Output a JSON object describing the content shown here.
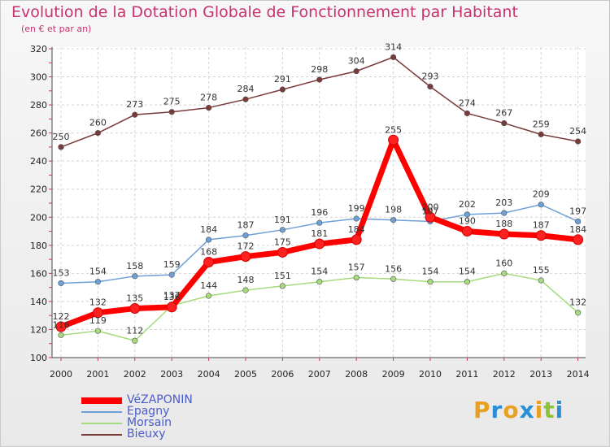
{
  "title": "Evolution de la Dotation Globale de Fonctionnement par Habitant",
  "subtitle": "(en € et par an)",
  "logo": {
    "text": "Proxiti",
    "letters": [
      "P",
      "r",
      "o",
      "x",
      "i",
      "t",
      "i"
    ],
    "colors": [
      "#e8a020",
      "#2a8fd6",
      "#e8a020",
      "#2a8fd6",
      "#e8a020",
      "#8fc23b",
      "#2a8fd6"
    ]
  },
  "chart_data": {
    "type": "line",
    "x": [
      2000,
      2001,
      2002,
      2003,
      2004,
      2005,
      2006,
      2007,
      2008,
      2009,
      2010,
      2011,
      2012,
      2013,
      2014
    ],
    "ylim": [
      100,
      320
    ],
    "yticks": [
      100,
      120,
      140,
      160,
      180,
      200,
      220,
      240,
      260,
      280,
      300,
      320
    ],
    "grid": true,
    "legend": "bottom-left",
    "series": [
      {
        "name": "VéZAPONIN",
        "color": "#ff0000",
        "values": [
          122,
          132,
          135,
          136,
          168,
          172,
          175,
          181,
          184,
          255,
          200,
          190,
          188,
          187,
          184
        ],
        "labels": [
          "122",
          "132",
          "135",
          "136",
          "168",
          "172",
          "175",
          "181",
          "184",
          "255",
          "200",
          "190",
          "188",
          "187",
          "184"
        ]
      },
      {
        "name": "Epagny",
        "color": "#6ca0d6",
        "values": [
          153,
          154,
          158,
          159,
          184,
          187,
          191,
          196,
          199,
          198,
          197,
          202,
          203,
          209,
          197
        ],
        "labels": [
          "153",
          "154",
          "158",
          "159",
          "184",
          "187",
          "191",
          "196",
          "199",
          "198",
          "197",
          "202",
          "203",
          "209",
          "197"
        ]
      },
      {
        "name": "Morsain",
        "color": "#a6db7e",
        "values": [
          116,
          119,
          112,
          137,
          144,
          148,
          151,
          154,
          157,
          156,
          154,
          154,
          160,
          155,
          132
        ],
        "labels": [
          "116",
          "119",
          "112",
          "137",
          "144",
          "148",
          "151",
          "154",
          "157",
          "156",
          "154",
          "154",
          "160",
          "155",
          "132"
        ]
      },
      {
        "name": "Bieuxy",
        "color": "#7a3a3a",
        "values": [
          250,
          260,
          273,
          275,
          278,
          284,
          291,
          298,
          304,
          314,
          293,
          274,
          267,
          259,
          254
        ],
        "labels": [
          "250",
          "260",
          "273",
          "275",
          "278",
          "284",
          "291",
          "298",
          "304",
          "314",
          "293",
          "274",
          "267",
          "259",
          "254"
        ]
      }
    ]
  }
}
